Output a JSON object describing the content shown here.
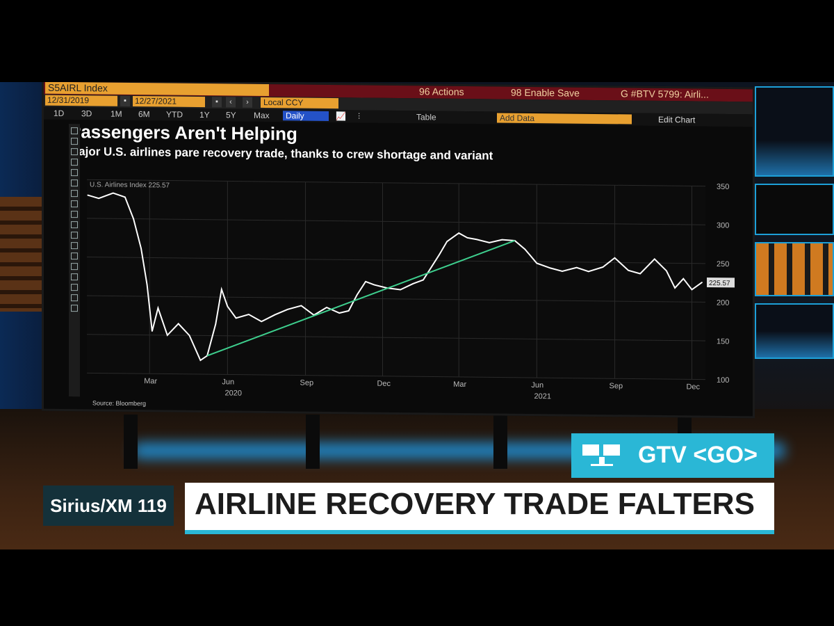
{
  "app": {
    "ticker": "S5AIRL Index",
    "actions_label": "96 Actions",
    "enable_save_label": "98 Enable Save",
    "news_function": "G #BTV 5799: Airli..."
  },
  "date_range": {
    "start": "12/31/2019",
    "end": "12/27/2021",
    "currency": "Local CCY"
  },
  "periods": [
    "1D",
    "3D",
    "1M",
    "6M",
    "YTD",
    "1Y",
    "5Y",
    "Max"
  ],
  "frequency": "Daily",
  "table_label": "Table",
  "add_data_placeholder": "Add Data",
  "edit_chart_label": "Edit Chart",
  "chart_data": {
    "type": "line",
    "title": "Passengers Aren't Helping",
    "subtitle": "Major U.S. airlines pare recovery trade, thanks to crew shortage and variant",
    "source": "Source: Bloomberg",
    "legend_label": "U.S. Airlines Index 225.57",
    "last_value_label": "225.57",
    "ylim": [
      100,
      350
    ],
    "y_ticks": [
      100,
      150,
      200,
      250,
      300,
      350
    ],
    "x_tick_labels": [
      "Mar",
      "Jun",
      "Sep",
      "Dec",
      "Mar",
      "Jun",
      "Sep",
      "Dec"
    ],
    "x_year_labels": [
      "2020",
      "2021"
    ],
    "series": [
      {
        "values": [
          {
            "x": "2020-01-02",
            "y": 330
          },
          {
            "x": "2020-01-15",
            "y": 326
          },
          {
            "x": "2020-02-01",
            "y": 333
          },
          {
            "x": "2020-02-15",
            "y": 328
          },
          {
            "x": "2020-02-25",
            "y": 300
          },
          {
            "x": "2020-03-05",
            "y": 262
          },
          {
            "x": "2020-03-12",
            "y": 215
          },
          {
            "x": "2020-03-18",
            "y": 155
          },
          {
            "x": "2020-03-25",
            "y": 185
          },
          {
            "x": "2020-04-05",
            "y": 150
          },
          {
            "x": "2020-04-18",
            "y": 165
          },
          {
            "x": "2020-05-01",
            "y": 150
          },
          {
            "x": "2020-05-14",
            "y": 118
          },
          {
            "x": "2020-05-22",
            "y": 124
          },
          {
            "x": "2020-06-01",
            "y": 165
          },
          {
            "x": "2020-06-08",
            "y": 210
          },
          {
            "x": "2020-06-15",
            "y": 188
          },
          {
            "x": "2020-06-25",
            "y": 173
          },
          {
            "x": "2020-07-10",
            "y": 178
          },
          {
            "x": "2020-07-25",
            "y": 169
          },
          {
            "x": "2020-08-10",
            "y": 178
          },
          {
            "x": "2020-08-25",
            "y": 185
          },
          {
            "x": "2020-09-10",
            "y": 190
          },
          {
            "x": "2020-09-25",
            "y": 178
          },
          {
            "x": "2020-10-10",
            "y": 188
          },
          {
            "x": "2020-10-25",
            "y": 181
          },
          {
            "x": "2020-11-05",
            "y": 184
          },
          {
            "x": "2020-11-15",
            "y": 205
          },
          {
            "x": "2020-11-25",
            "y": 222
          },
          {
            "x": "2020-12-05",
            "y": 218
          },
          {
            "x": "2020-12-20",
            "y": 214
          },
          {
            "x": "2021-01-05",
            "y": 212
          },
          {
            "x": "2021-01-20",
            "y": 220
          },
          {
            "x": "2021-02-01",
            "y": 225
          },
          {
            "x": "2021-02-20",
            "y": 258
          },
          {
            "x": "2021-03-01",
            "y": 275
          },
          {
            "x": "2021-03-15",
            "y": 286
          },
          {
            "x": "2021-03-25",
            "y": 280
          },
          {
            "x": "2021-04-05",
            "y": 278
          },
          {
            "x": "2021-04-20",
            "y": 274
          },
          {
            "x": "2021-05-05",
            "y": 278
          },
          {
            "x": "2021-05-20",
            "y": 277
          },
          {
            "x": "2021-06-01",
            "y": 266
          },
          {
            "x": "2021-06-15",
            "y": 248
          },
          {
            "x": "2021-07-01",
            "y": 242
          },
          {
            "x": "2021-07-15",
            "y": 238
          },
          {
            "x": "2021-08-01",
            "y": 243
          },
          {
            "x": "2021-08-15",
            "y": 238
          },
          {
            "x": "2021-09-01",
            "y": 244
          },
          {
            "x": "2021-09-15",
            "y": 256
          },
          {
            "x": "2021-10-01",
            "y": 240
          },
          {
            "x": "2021-10-15",
            "y": 236
          },
          {
            "x": "2021-11-01",
            "y": 255
          },
          {
            "x": "2021-11-15",
            "y": 240
          },
          {
            "x": "2021-11-25",
            "y": 218
          },
          {
            "x": "2021-12-05",
            "y": 230
          },
          {
            "x": "2021-12-15",
            "y": 216
          },
          {
            "x": "2021-12-27",
            "y": 225.57
          }
        ]
      }
    ],
    "trendline": {
      "start": {
        "x": "2020-05-22",
        "y": 124
      },
      "end": {
        "x": "2021-05-20",
        "y": 277
      }
    },
    "colors": {
      "line": "#ffffff",
      "trend": "#3ecf8e",
      "grid": "#2a2a2a"
    }
  },
  "overlay": {
    "gtv_label": "GTV <GO>",
    "radio_label": "Sirius/XM 119",
    "headline": "AIRLINE RECOVERY TRADE FALTERS",
    "accent": "#2ab7d6"
  }
}
